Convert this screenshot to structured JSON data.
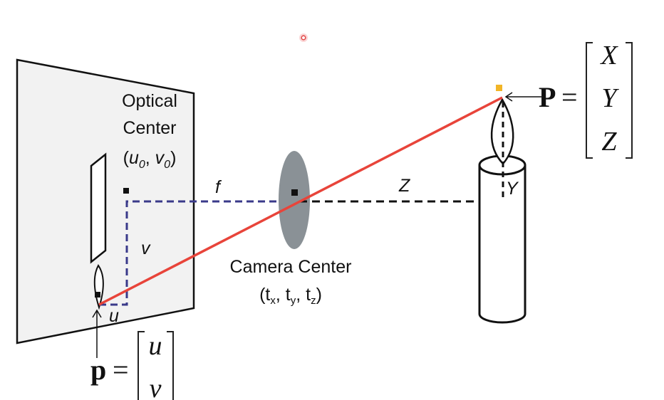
{
  "labels": {
    "optical_center_line1": "Optical",
    "optical_center_line2": "Center",
    "optical_center_coords_open": "(",
    "optical_center_u": "u",
    "optical_center_u_sub": "0",
    "optical_center_comma": ", ",
    "optical_center_v": "v",
    "optical_center_v_sub": "0",
    "optical_center_coords_close": ")",
    "focal_length": "f",
    "depth": "Z",
    "height": "Y",
    "image_v": "v",
    "image_u": "u",
    "camera_center_line1": "Camera Center",
    "camera_center_coords_open": "(t",
    "camera_center_tx_sub": "x",
    "camera_center_sep1": ", t",
    "camera_center_ty_sub": "y",
    "camera_center_sep2": ", t",
    "camera_center_tz_sub": "z",
    "camera_center_coords_close": ")"
  },
  "world_point": {
    "symbol": "P",
    "equals": "=",
    "components": [
      "X",
      "Y",
      "Z"
    ]
  },
  "image_point": {
    "symbol": "p",
    "equals": "=",
    "components": [
      "u",
      "v"
    ]
  },
  "colors": {
    "ray": "#e8443a",
    "dashed_image": "#3a3a8a",
    "dashed_world": "#111111",
    "lens": "#8a9196",
    "point_marker": "#f2b527",
    "cursor": "#e24c4c"
  },
  "icons": {
    "cursor": "cursor-dot-icon"
  }
}
